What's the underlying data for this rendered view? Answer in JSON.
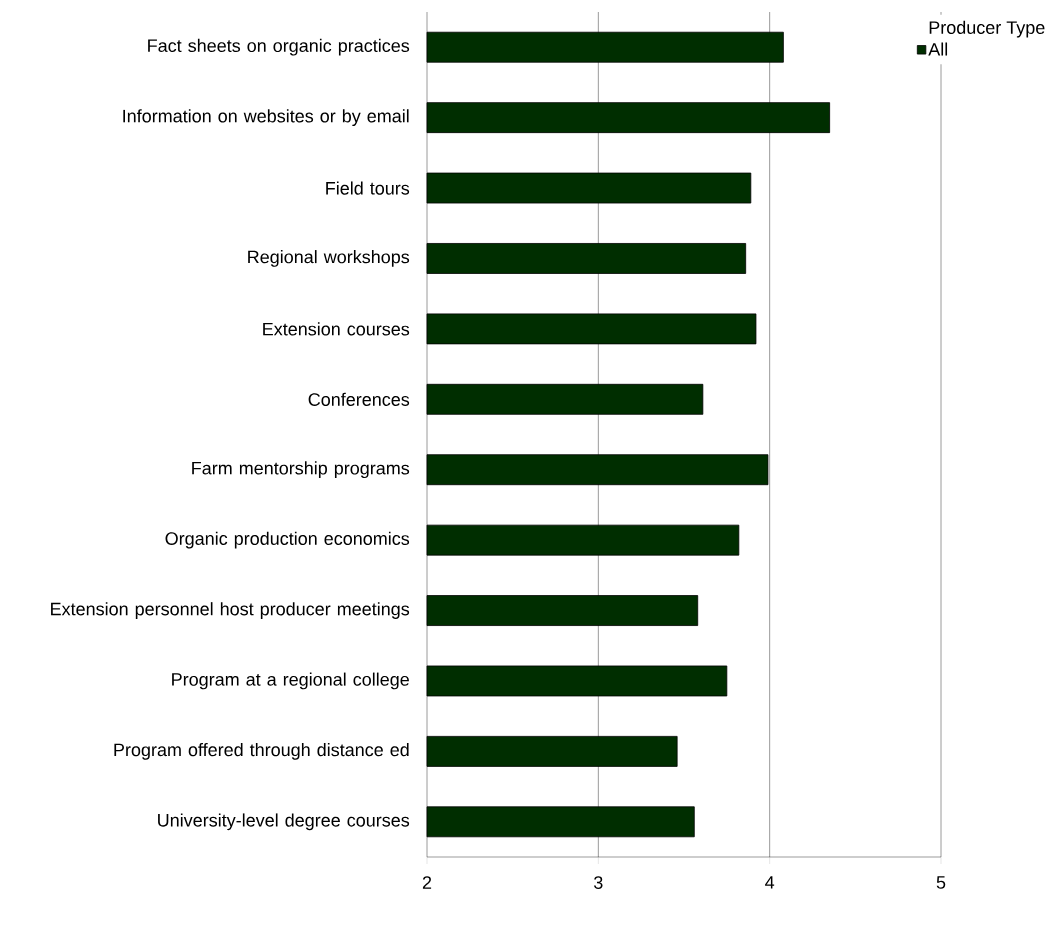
{
  "chart_data": {
    "type": "bar",
    "orientation": "horizontal",
    "categories": [
      "Fact sheets on organic practices",
      "Information on websites or by email",
      "Field tours",
      "Regional workshops",
      "Extension courses",
      "Conferences",
      "Farm mentorship programs",
      "Organic production economics",
      "Extension personnel host producer meetings",
      "Program at a regional college",
      "Program offered through distance ed",
      "University-level degree courses"
    ],
    "series": [
      {
        "name": "All",
        "color": "#002e00",
        "values": [
          4.08,
          4.35,
          3.89,
          3.86,
          3.92,
          3.61,
          3.99,
          3.82,
          3.58,
          3.75,
          3.46,
          3.56
        ]
      }
    ],
    "legend_title": "Producer Type",
    "legend": "top right",
    "xlim": [
      2,
      5
    ],
    "xticks": [
      2,
      3,
      4,
      5
    ],
    "grid": "x"
  }
}
